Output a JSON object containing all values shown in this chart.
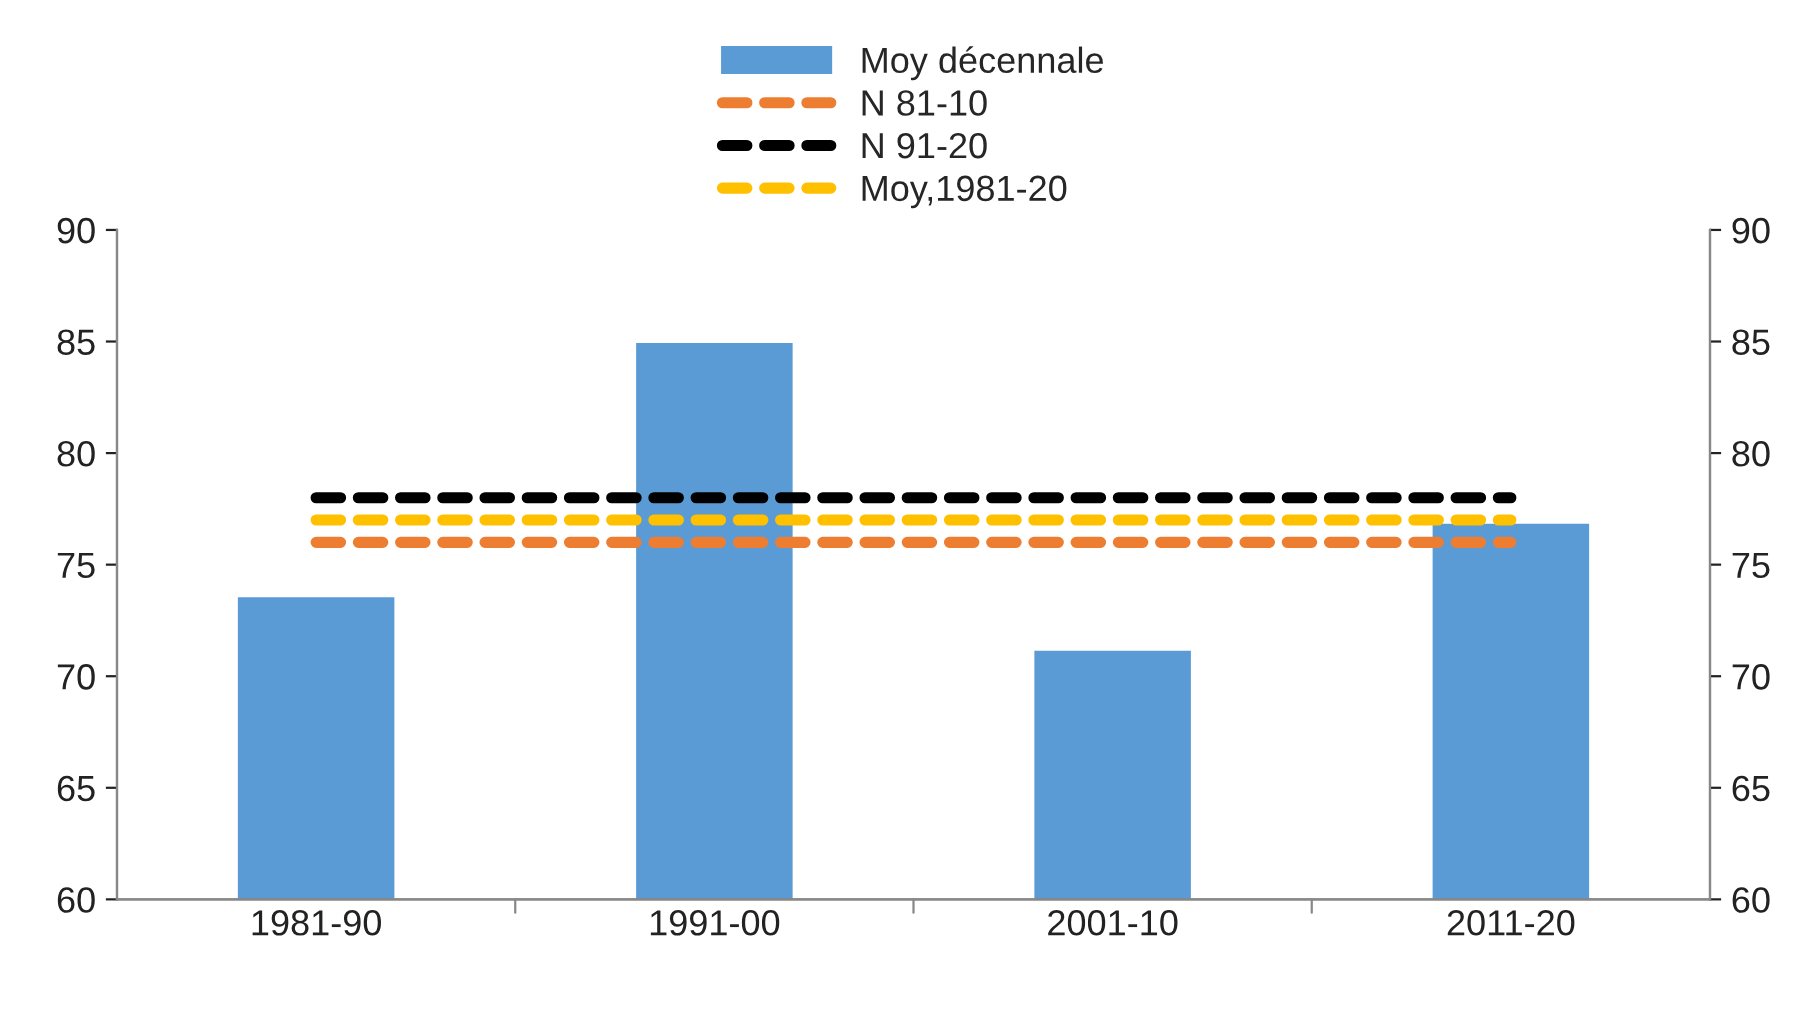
{
  "chart_data": {
    "type": "bar",
    "categories": [
      "1981-90",
      "1991-00",
      "2001-10",
      "2011-20"
    ],
    "series": [
      {
        "name": "Moy décennale",
        "color": "#5b9bd5",
        "values": [
          73.6,
          85,
          71.2,
          76.9
        ]
      },
      {
        "name": "N 81-10",
        "type": "line",
        "color": "#ed7d31",
        "line_style": "dashed",
        "values": [
          76,
          76,
          76,
          76
        ]
      },
      {
        "name": "N 91-20",
        "type": "line",
        "color": "#000000",
        "line_style": "dashed",
        "values": [
          78,
          78,
          78,
          78
        ]
      },
      {
        "name": "Moy,1981-20",
        "type": "line",
        "color": "#ffc000",
        "line_style": "dashed",
        "values": [
          77,
          77,
          77,
          77
        ]
      }
    ],
    "ylim": [
      60,
      90
    ],
    "yticks": [
      60,
      65,
      70,
      75,
      80,
      85,
      90
    ],
    "y2lim": [
      60,
      90
    ],
    "y2ticks": [
      60,
      65,
      70,
      75,
      80,
      85,
      90
    ],
    "grid": false,
    "legend": "top"
  }
}
